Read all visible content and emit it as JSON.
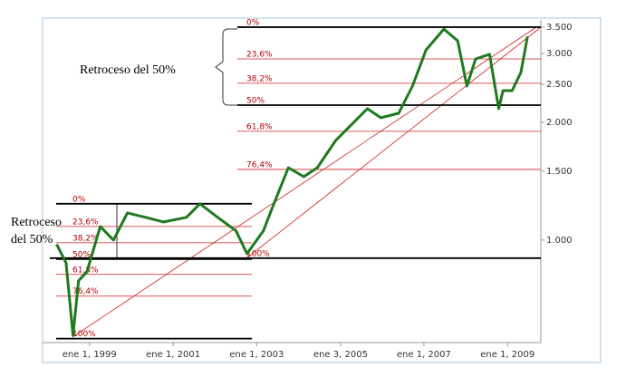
{
  "chart_data": {
    "type": "line",
    "log_scale": true,
    "x": [
      "1998-03-20",
      "1998-06-10",
      "1998-08-10",
      "1998-09-27",
      "1998-12-10",
      "1999-04-05",
      "1999-07-30",
      "1999-11-28",
      "2000-05-05",
      "2000-10-10",
      "2001-04-28",
      "2001-08-22",
      "2002-01-25",
      "2002-07-05",
      "2002-10-08",
      "2003-02-28",
      "2003-05-15",
      "2003-10-05",
      "2004-02-17",
      "2004-06-14",
      "2004-11-22",
      "2005-04-27",
      "2005-08-25",
      "2005-12-20",
      "2006-05-25",
      "2006-09-23",
      "2007-01-20",
      "2007-06-25",
      "2007-10-23",
      "2008-01-12",
      "2008-03-28",
      "2008-07-28",
      "2008-10-16",
      "2008-11-22",
      "2009-02-10",
      "2009-04-28",
      "2009-06-25"
    ],
    "series": [
      {
        "color": "#1f7a1f",
        "values": [
          975,
          875,
          571,
          787,
          830,
          1083,
          1000,
          1173,
          1143,
          1112,
          1143,
          1238,
          1143,
          1055,
          923,
          1055,
          1205,
          1531,
          1452,
          1531,
          1797,
          1997,
          2166,
          2054,
          2108,
          2474,
          3062,
          3460,
          3229,
          2474,
          2903,
          2983,
          2166,
          2409,
          2409,
          2682,
          3315
        ]
      }
    ],
    "xlim": [
      "1997-11-17",
      "2009-10-19"
    ],
    "xticks": [
      {
        "value": "1999-01-01",
        "label": "ene 1, 1999"
      },
      {
        "value": "2001-01-01",
        "label": "ene 1, 2001"
      },
      {
        "value": "2003-01-01",
        "label": "ene 1, 2003"
      },
      {
        "value": "2005-01-03",
        "label": "ene 3, 2005"
      },
      {
        "value": "2007-01-01",
        "label": "ene 1, 2007"
      },
      {
        "value": "2009-01-01",
        "label": "ene 1, 2009"
      }
    ],
    "ylim": [
      547,
      3651
    ],
    "yticks": [
      {
        "value": 1000,
        "label": "1.000"
      },
      {
        "value": 1500,
        "label": "1.500"
      },
      {
        "value": 2000,
        "label": "2.000"
      },
      {
        "value": 2500,
        "label": "2.500"
      },
      {
        "value": 3000,
        "label": "3.000"
      },
      {
        "value": 3500,
        "label": "3.500"
      }
    ],
    "retracements": [
      {
        "levels": [
          {
            "label": "0%",
            "value": 1238,
            "color": "#000000"
          },
          {
            "label": "23,6%",
            "value": 1083,
            "color": "#d02020"
          },
          {
            "label": "38,2%",
            "value": 984,
            "color": "#d02020"
          },
          {
            "label": "50%",
            "value": 894,
            "color": "#000000"
          },
          {
            "label": "61,8%",
            "value": 817,
            "color": "#d02020"
          },
          {
            "label": "76,4%",
            "value": 719,
            "color": "#d02020"
          },
          {
            "label": "100%",
            "value": 560,
            "color": "#000000"
          }
        ]
      },
      {
        "levels": [
          {
            "label": "0%",
            "value": 3500,
            "color": "#000000"
          },
          {
            "label": "23,6%",
            "value": 2903,
            "color": "#d02020"
          },
          {
            "label": "38,2%",
            "value": 2515,
            "color": "#d02020"
          },
          {
            "label": "50%",
            "value": 2212,
            "color": "#000000"
          },
          {
            "label": "61,8%",
            "value": 1896,
            "color": "#d02020"
          },
          {
            "label": "76,4%",
            "value": 1515,
            "color": "#d02020"
          },
          {
            "label": "100%",
            "value": 899,
            "color": "#000000"
          }
        ]
      }
    ],
    "annotations": [
      {
        "lines": [
          "Retroceso del 50%"
        ]
      },
      {
        "lines": [
          "Retroceso",
          "del 50%"
        ]
      }
    ]
  }
}
